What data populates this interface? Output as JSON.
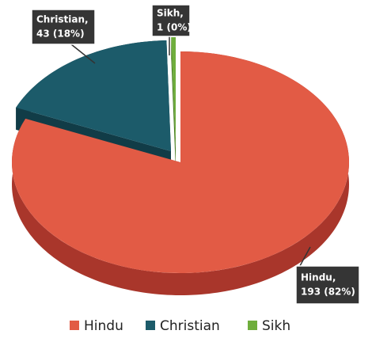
{
  "chart_data": {
    "type": "pie",
    "categories": [
      "Hindu",
      "Christian",
      "Sikh"
    ],
    "callout_names": [
      "Hindu,",
      "Christian,",
      "Sikh,"
    ],
    "values": [
      193,
      43,
      1
    ],
    "value_labels": [
      "193 (82%)",
      "43 (18%)",
      "1 (0%)"
    ],
    "colors": [
      "#e25b45",
      "#1c5b6a",
      "#6fae3c"
    ],
    "side_colors": [
      "#a9362b",
      "#113c47",
      "#4a7d25"
    ],
    "legend": "bottom"
  }
}
